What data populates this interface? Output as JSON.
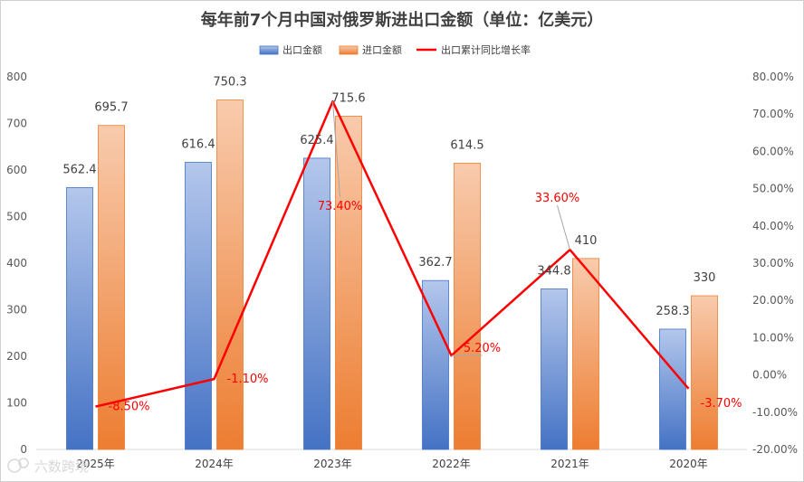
{
  "chart_data": {
    "type": "bar",
    "title": "每年前7个月中国对俄罗斯进出口金额（单位：亿美元）",
    "categories": [
      "2025年",
      "2024年",
      "2023年",
      "2022年",
      "2021年",
      "2020年"
    ],
    "series": [
      {
        "name": "出口金额",
        "type": "bar",
        "axis": "left",
        "color": "#4472c4",
        "values": [
          562.4,
          616.4,
          625.4,
          362.7,
          344.8,
          258.3
        ]
      },
      {
        "name": "进口金额",
        "type": "bar",
        "axis": "left",
        "color": "#ed7d31",
        "values": [
          695.7,
          750.3,
          715.6,
          614.5,
          410,
          330
        ]
      },
      {
        "name": "出口累计同比增长率",
        "type": "line",
        "axis": "right",
        "color": "#ff0000",
        "values": [
          -8.5,
          -1.1,
          73.4,
          5.2,
          33.6,
          -3.7
        ],
        "labels": [
          "-8.50%",
          "-1.10%",
          "73.40%",
          "5.20%",
          "33.60%",
          "-3.70%"
        ]
      }
    ],
    "left_axis": {
      "ylim": [
        0,
        800
      ],
      "ticks": [
        "0",
        "100",
        "200",
        "300",
        "400",
        "500",
        "600",
        "700",
        "800"
      ]
    },
    "right_axis": {
      "ylim": [
        -20,
        80
      ],
      "ticks": [
        "-20.00%",
        "-10.00%",
        "0.00%",
        "10.00%",
        "20.00%",
        "30.00%",
        "40.00%",
        "50.00%",
        "60.00%",
        "70.00%",
        "80.00%"
      ]
    },
    "legend_position": "top-center",
    "grid": false
  },
  "watermark": "六数跨境"
}
